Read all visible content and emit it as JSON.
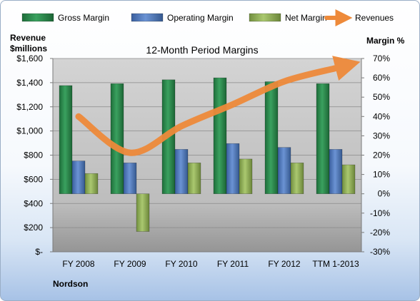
{
  "chart_data": {
    "type": "bar",
    "title": "12-Month Period Margins",
    "company": "Nordson",
    "left_axis": {
      "label_line1": "Revenue",
      "label_line2": "$millions",
      "range": [
        0,
        1600
      ],
      "ticks": [
        0,
        200,
        400,
        600,
        800,
        1000,
        1200,
        1400,
        1600
      ],
      "tick_labels": [
        "$-",
        "$200",
        "$400",
        "$600",
        "$800",
        "$1,000",
        "$1,200",
        "$1,400",
        "$1,600"
      ]
    },
    "right_axis": {
      "label": "Margin %",
      "range": [
        -30,
        70
      ],
      "ticks": [
        -30,
        -20,
        -10,
        0,
        10,
        20,
        30,
        40,
        50,
        60,
        70
      ],
      "tick_labels": [
        "-30%",
        "-20%",
        "-10%",
        "0%",
        "10%",
        "20%",
        "30%",
        "40%",
        "50%",
        "60%",
        "70%"
      ]
    },
    "categories": [
      "FY 2008",
      "FY 2009",
      "FY 2010",
      "FY 2011",
      "FY 2012",
      "TTM 1-2013"
    ],
    "series": [
      {
        "name": "Gross Margin",
        "axis": "right",
        "color": "#2d8a4e",
        "values": [
          56,
          57,
          59,
          60,
          58,
          57
        ]
      },
      {
        "name": "Operating Margin",
        "axis": "right",
        "color": "#4f78bd",
        "values": [
          17,
          16,
          23,
          26,
          24,
          23
        ]
      },
      {
        "name": "Net Margin",
        "axis": "right",
        "color": "#93b35a",
        "values": [
          10.5,
          -19.5,
          16,
          18,
          16,
          15
        ]
      },
      {
        "name": "Revenues",
        "axis": "left",
        "type": "line",
        "color": "#ee8a3a",
        "values": [
          1120,
          820,
          1040,
          1220,
          1410,
          1520
        ]
      }
    ],
    "plot_background": "#c0c0c0",
    "legend_position": "top"
  }
}
